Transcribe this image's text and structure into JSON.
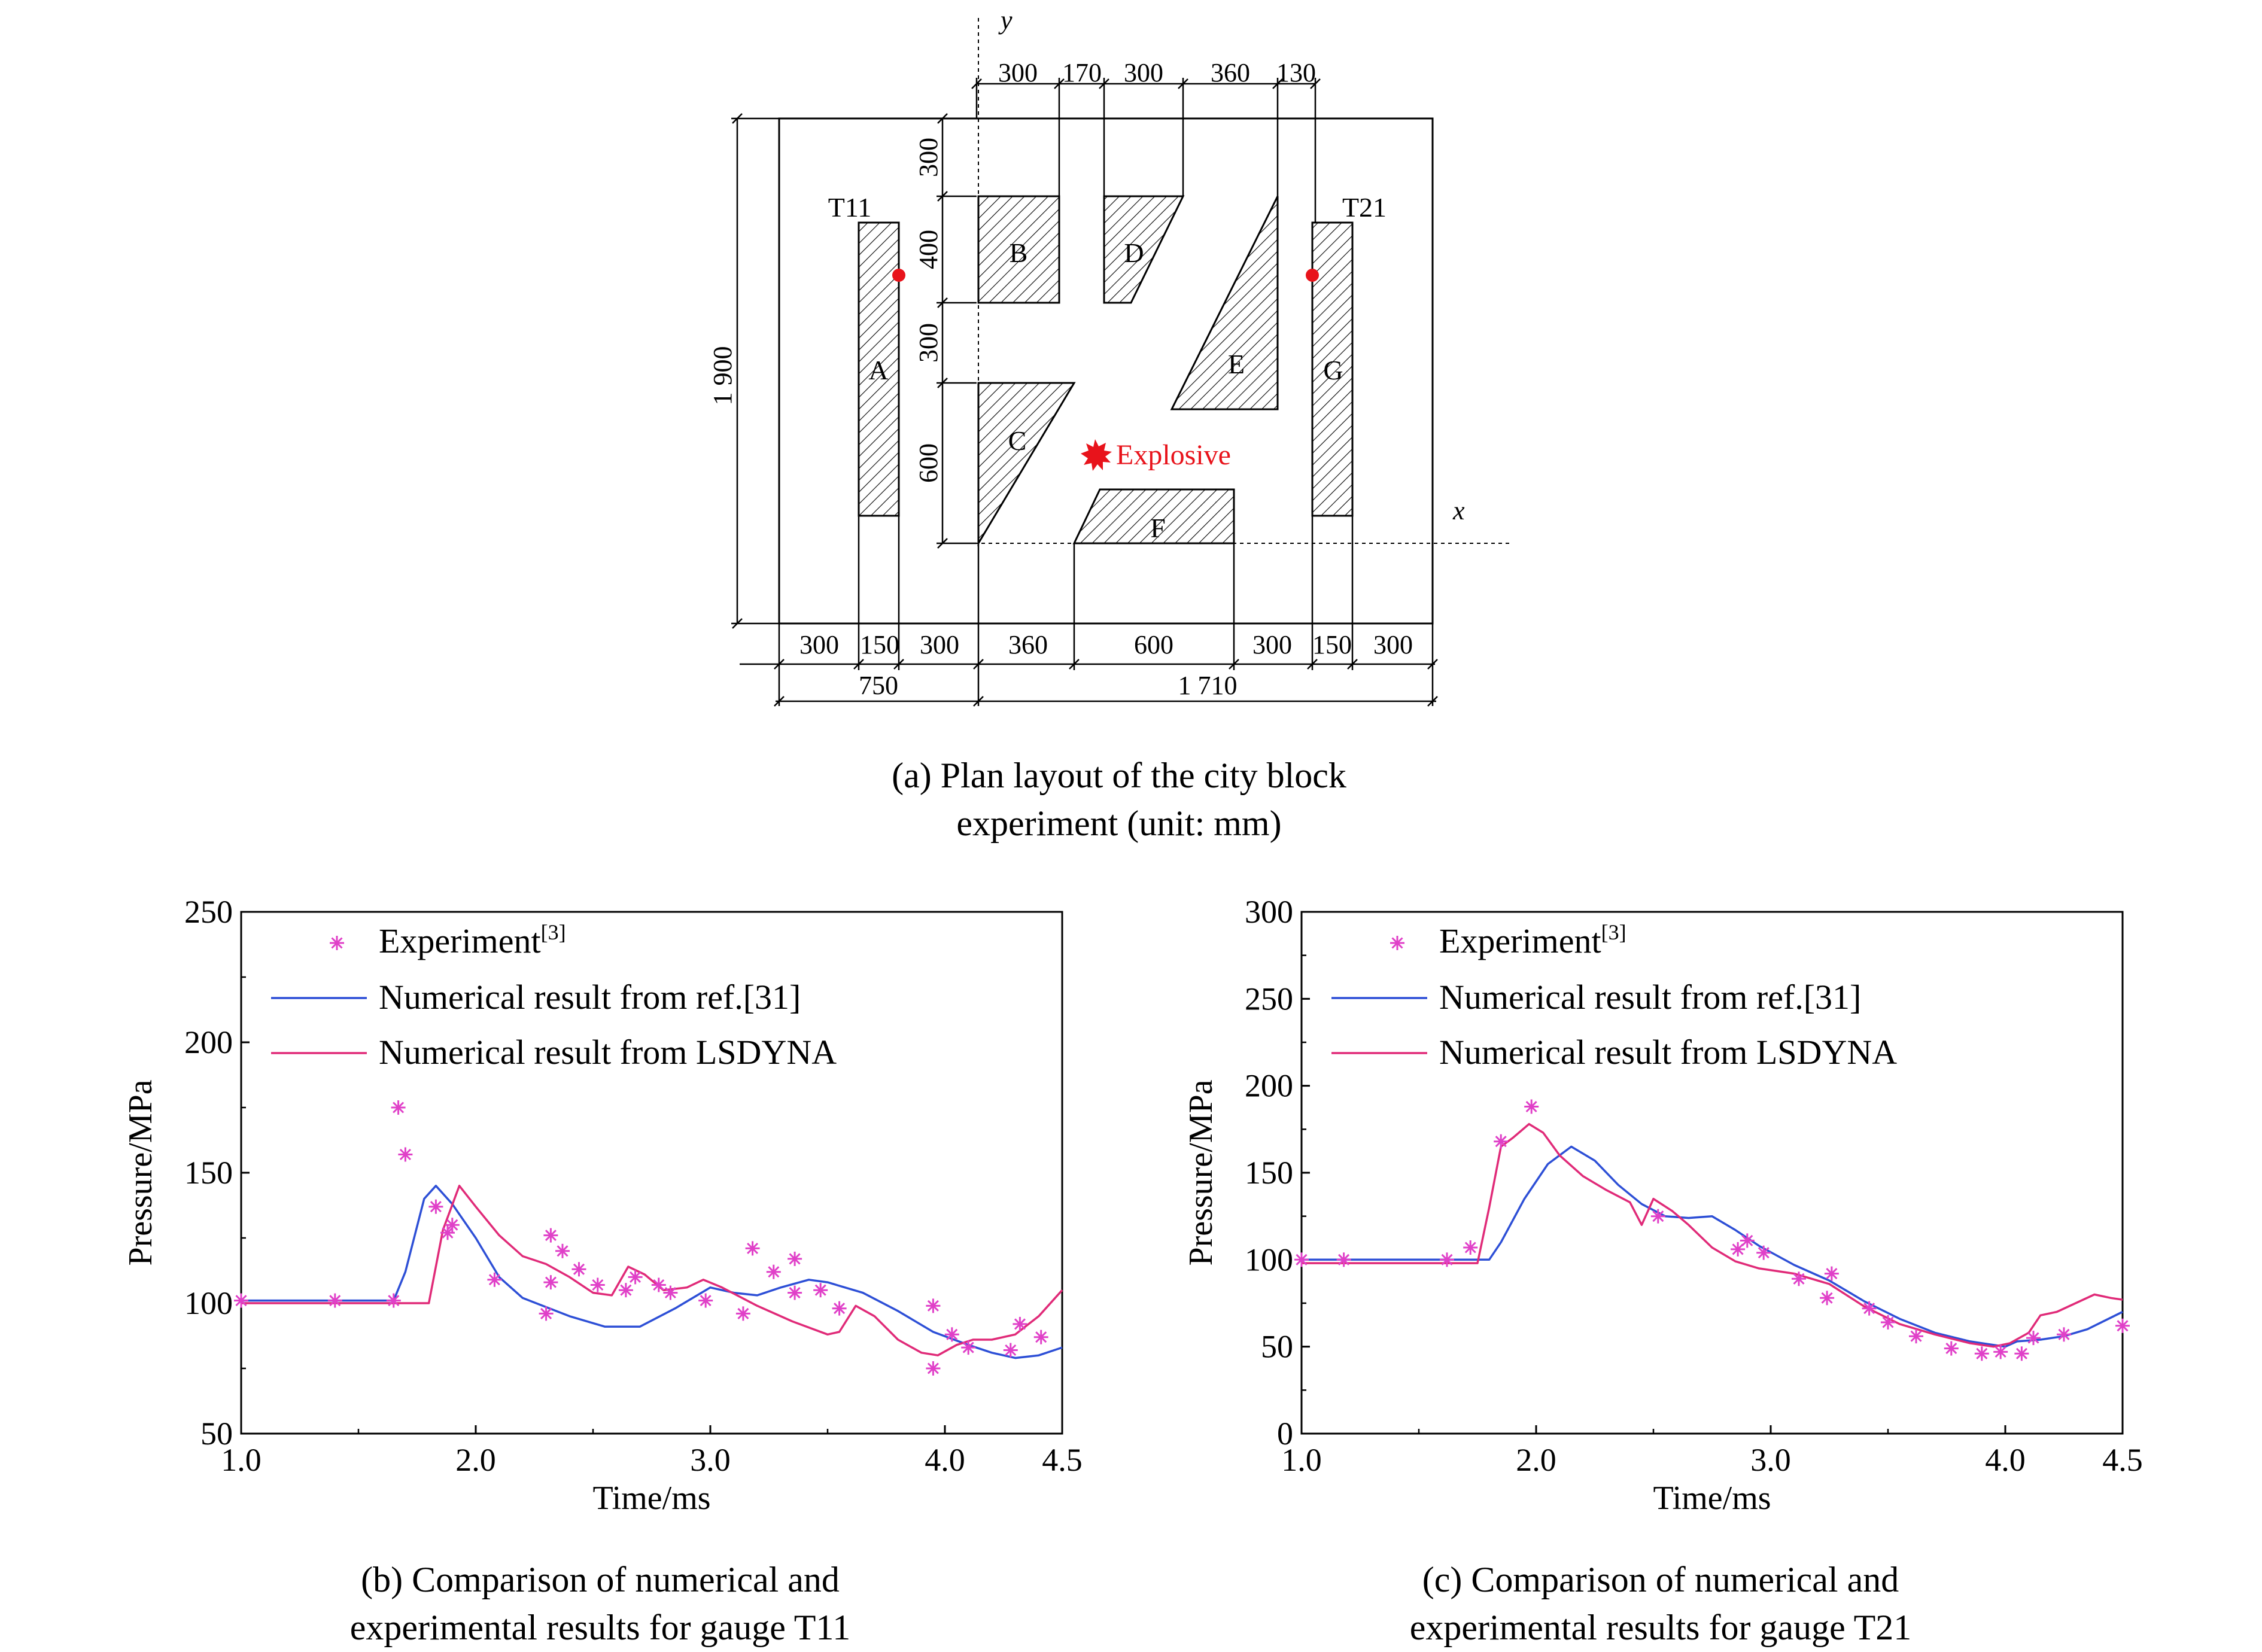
{
  "layout": {
    "caption_line1": "(a) Plan layout of the city block",
    "caption_line2": "experiment (unit: mm)",
    "axis_x": "x",
    "axis_y": "y",
    "gauges": [
      "T11",
      "T21"
    ],
    "buildings": [
      "A",
      "B",
      "C",
      "D",
      "E",
      "F",
      "G"
    ],
    "explosive_label": "Explosive",
    "dims_top": [
      "300",
      "170",
      "300",
      "360",
      "130"
    ],
    "dims_left": [
      "300",
      "400",
      "300",
      "600"
    ],
    "dim_height": "1 900",
    "dims_bottom": [
      "300",
      "150",
      "300",
      "360",
      "600",
      "300",
      "150",
      "300"
    ],
    "dims_total": [
      "750",
      "1 710"
    ],
    "colors": {
      "gauge": "#e8131b",
      "explosive": "#e8131b",
      "hatch": "#000000"
    }
  },
  "chart_data": [
    {
      "type": "line",
      "caption_line1": "(b) Comparison of numerical and",
      "caption_line2": "experimental results for gauge T11",
      "xlabel": "Time/ms",
      "ylabel": "Pressure/MPa",
      "xlim": [
        1.0,
        4.5
      ],
      "ylim": [
        50,
        250
      ],
      "xticks": [
        "1.0",
        "2.0",
        "3.0",
        "4.0",
        "4.5"
      ],
      "xtick_values": [
        1.0,
        2.0,
        3.0,
        4.0,
        4.5
      ],
      "yticks": [
        "50",
        "100",
        "150",
        "200",
        "250"
      ],
      "ytick_values": [
        50,
        100,
        150,
        200,
        250
      ],
      "legend": {
        "experiment": "Experiment",
        "experiment_ref": "[3]",
        "ref31": "Numerical result from ref.[31]",
        "lsdyna": "Numerical result from LSDYNA"
      },
      "series": [
        {
          "key": "experiment",
          "kind": "scatter",
          "color": "#e040c8",
          "points": [
            [
              1.0,
              101
            ],
            [
              1.4,
              101
            ],
            [
              1.65,
              101
            ],
            [
              1.67,
              175
            ],
            [
              1.7,
              157
            ],
            [
              1.83,
              137
            ],
            [
              1.88,
              127
            ],
            [
              1.9,
              130
            ],
            [
              2.08,
              109
            ],
            [
              2.3,
              96
            ],
            [
              2.32,
              108
            ],
            [
              2.32,
              126
            ],
            [
              2.37,
              120
            ],
            [
              2.44,
              113
            ],
            [
              2.52,
              107
            ],
            [
              2.64,
              105
            ],
            [
              2.68,
              110
            ],
            [
              2.78,
              107
            ],
            [
              2.83,
              104
            ],
            [
              2.98,
              101
            ],
            [
              3.14,
              96
            ],
            [
              3.18,
              121
            ],
            [
              3.27,
              112
            ],
            [
              3.36,
              104
            ],
            [
              3.36,
              117
            ],
            [
              3.47,
              105
            ],
            [
              3.55,
              98
            ],
            [
              3.95,
              75
            ],
            [
              3.95,
              99
            ],
            [
              4.03,
              88
            ],
            [
              4.1,
              83
            ],
            [
              4.28,
              82
            ],
            [
              4.32,
              92
            ],
            [
              4.41,
              87
            ]
          ]
        },
        {
          "key": "ref31",
          "kind": "line",
          "color": "#2d4fd6",
          "points": [
            [
              1.0,
              101
            ],
            [
              1.65,
              101
            ],
            [
              1.7,
              112
            ],
            [
              1.78,
              140
            ],
            [
              1.83,
              145
            ],
            [
              1.9,
              138
            ],
            [
              2.0,
              125
            ],
            [
              2.1,
              110
            ],
            [
              2.2,
              102
            ],
            [
              2.4,
              95
            ],
            [
              2.55,
              91
            ],
            [
              2.7,
              91
            ],
            [
              2.85,
              98
            ],
            [
              3.0,
              106
            ],
            [
              3.1,
              104
            ],
            [
              3.2,
              103
            ],
            [
              3.3,
              106
            ],
            [
              3.42,
              109
            ],
            [
              3.5,
              108
            ],
            [
              3.65,
              104
            ],
            [
              3.8,
              97
            ],
            [
              3.95,
              89
            ],
            [
              4.1,
              84
            ],
            [
              4.2,
              81
            ],
            [
              4.3,
              79
            ],
            [
              4.4,
              80
            ],
            [
              4.5,
              83
            ]
          ]
        },
        {
          "key": "lsdyna",
          "kind": "line",
          "color": "#e02a78",
          "points": [
            [
              1.0,
              100
            ],
            [
              1.8,
              100
            ],
            [
              1.86,
              128
            ],
            [
              1.93,
              145
            ],
            [
              2.0,
              137
            ],
            [
              2.1,
              126
            ],
            [
              2.2,
              118
            ],
            [
              2.3,
              115
            ],
            [
              2.4,
              110
            ],
            [
              2.5,
              104
            ],
            [
              2.58,
              103
            ],
            [
              2.65,
              114
            ],
            [
              2.72,
              111
            ],
            [
              2.8,
              105
            ],
            [
              2.9,
              106
            ],
            [
              2.97,
              109
            ],
            [
              3.05,
              106
            ],
            [
              3.2,
              99
            ],
            [
              3.35,
              93
            ],
            [
              3.5,
              88
            ],
            [
              3.55,
              89
            ],
            [
              3.62,
              99
            ],
            [
              3.7,
              95
            ],
            [
              3.8,
              86
            ],
            [
              3.9,
              81
            ],
            [
              3.97,
              80
            ],
            [
              4.05,
              84
            ],
            [
              4.12,
              86
            ],
            [
              4.2,
              86
            ],
            [
              4.3,
              88
            ],
            [
              4.4,
              95
            ],
            [
              4.5,
              105
            ]
          ]
        }
      ]
    },
    {
      "type": "line",
      "caption_line1": "(c) Comparison of numerical and",
      "caption_line2": "experimental results for gauge T21",
      "xlabel": "Time/ms",
      "ylabel": "Pressure/MPa",
      "xlim": [
        1.0,
        4.5
      ],
      "ylim": [
        0,
        300
      ],
      "xticks": [
        "1.0",
        "2.0",
        "3.0",
        "4.0",
        "4.5"
      ],
      "xtick_values": [
        1.0,
        2.0,
        3.0,
        4.0,
        4.5
      ],
      "yticks": [
        "0",
        "50",
        "100",
        "150",
        "200",
        "250",
        "300"
      ],
      "ytick_values": [
        0,
        50,
        100,
        150,
        200,
        250,
        300
      ],
      "legend": {
        "experiment": "Experiment",
        "experiment_ref": "[3]",
        "ref31": "Numerical result from ref.[31]",
        "lsdyna": "Numerical result from LSDYNA"
      },
      "series": [
        {
          "key": "experiment",
          "kind": "scatter",
          "color": "#e040c8",
          "points": [
            [
              1.0,
              100
            ],
            [
              1.18,
              100
            ],
            [
              1.62,
              100
            ],
            [
              1.72,
              107
            ],
            [
              1.85,
              168
            ],
            [
              1.98,
              188
            ],
            [
              2.52,
              125
            ],
            [
              2.86,
              106
            ],
            [
              2.9,
              111
            ],
            [
              2.97,
              104
            ],
            [
              3.12,
              89
            ],
            [
              3.24,
              78
            ],
            [
              3.26,
              92
            ],
            [
              3.42,
              72
            ],
            [
              3.5,
              64
            ],
            [
              3.62,
              56
            ],
            [
              3.77,
              49
            ],
            [
              3.9,
              46
            ],
            [
              3.98,
              47
            ],
            [
              4.07,
              46
            ],
            [
              4.12,
              55
            ],
            [
              4.25,
              57
            ],
            [
              4.5,
              62
            ]
          ]
        },
        {
          "key": "ref31",
          "kind": "line",
          "color": "#2d4fd6",
          "points": [
            [
              1.0,
              100
            ],
            [
              1.8,
              100
            ],
            [
              1.85,
              110
            ],
            [
              1.95,
              135
            ],
            [
              2.05,
              155
            ],
            [
              2.15,
              165
            ],
            [
              2.25,
              157
            ],
            [
              2.35,
              143
            ],
            [
              2.45,
              132
            ],
            [
              2.55,
              125
            ],
            [
              2.65,
              124
            ],
            [
              2.75,
              125
            ],
            [
              2.85,
              117
            ],
            [
              2.95,
              108
            ],
            [
              3.1,
              97
            ],
            [
              3.25,
              88
            ],
            [
              3.4,
              76
            ],
            [
              3.55,
              66
            ],
            [
              3.7,
              58
            ],
            [
              3.85,
              53
            ],
            [
              4.0,
              50
            ],
            [
              4.05,
              53
            ],
            [
              4.15,
              54
            ],
            [
              4.25,
              56
            ],
            [
              4.35,
              60
            ],
            [
              4.5,
              70
            ]
          ]
        },
        {
          "key": "lsdyna",
          "kind": "line",
          "color": "#e02a78",
          "points": [
            [
              1.0,
              98
            ],
            [
              1.75,
              98
            ],
            [
              1.8,
              130
            ],
            [
              1.85,
              165
            ],
            [
              1.9,
              170
            ],
            [
              1.97,
              178
            ],
            [
              2.03,
              173
            ],
            [
              2.1,
              160
            ],
            [
              2.2,
              148
            ],
            [
              2.3,
              140
            ],
            [
              2.4,
              133
            ],
            [
              2.45,
              120
            ],
            [
              2.5,
              135
            ],
            [
              2.58,
              128
            ],
            [
              2.65,
              120
            ],
            [
              2.75,
              107
            ],
            [
              2.85,
              99
            ],
            [
              2.95,
              95
            ],
            [
              3.1,
              92
            ],
            [
              3.25,
              86
            ],
            [
              3.4,
              73
            ],
            [
              3.55,
              63
            ],
            [
              3.7,
              57
            ],
            [
              3.85,
              52
            ],
            [
              3.95,
              50
            ],
            [
              4.02,
              52
            ],
            [
              4.1,
              58
            ],
            [
              4.15,
              68
            ],
            [
              4.22,
              70
            ],
            [
              4.3,
              75
            ],
            [
              4.38,
              80
            ],
            [
              4.45,
              78
            ],
            [
              4.5,
              77
            ]
          ]
        }
      ]
    }
  ]
}
